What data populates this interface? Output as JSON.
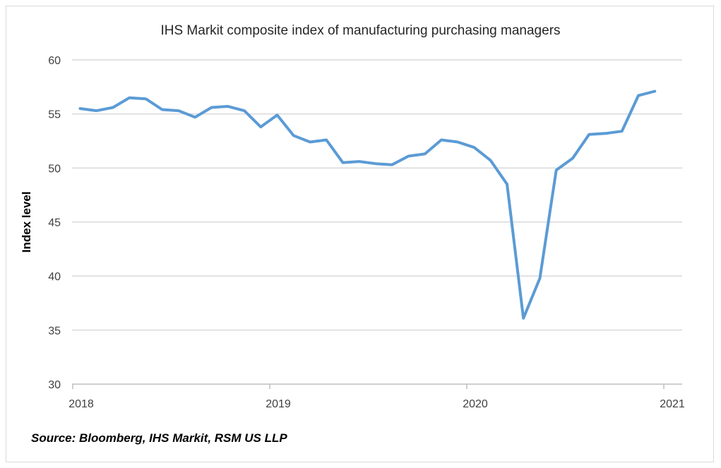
{
  "chart_data": {
    "type": "line",
    "title": "IHS Markit composite index of manufacturing purchasing managers",
    "xlabel": "",
    "ylabel": "Index level",
    "ylim": [
      30,
      60
    ],
    "yticks": [
      30,
      35,
      40,
      45,
      50,
      55,
      60
    ],
    "xticks": [
      "2018",
      "2019",
      "2020",
      "2021"
    ],
    "grid": "horizontal",
    "line_color": "#5b9bd5",
    "x": [
      "2018-01",
      "2018-02",
      "2018-03",
      "2018-04",
      "2018-05",
      "2018-06",
      "2018-07",
      "2018-08",
      "2018-09",
      "2018-10",
      "2018-11",
      "2018-12",
      "2019-01",
      "2019-02",
      "2019-03",
      "2019-04",
      "2019-05",
      "2019-06",
      "2019-07",
      "2019-08",
      "2019-09",
      "2019-10",
      "2019-11",
      "2019-12",
      "2020-01",
      "2020-02",
      "2020-03",
      "2020-04",
      "2020-05",
      "2020-06",
      "2020-07",
      "2020-08",
      "2020-09",
      "2020-10",
      "2020-11",
      "2020-12"
    ],
    "series": [
      {
        "values": [
          55.5,
          55.3,
          55.6,
          56.5,
          56.4,
          55.4,
          55.3,
          54.7,
          55.6,
          55.7,
          55.3,
          53.8,
          54.9,
          53.0,
          52.4,
          52.6,
          50.5,
          50.6,
          50.4,
          50.3,
          51.1,
          51.3,
          52.6,
          52.4,
          51.9,
          50.7,
          48.5,
          36.1,
          39.8,
          49.8,
          50.9,
          53.1,
          53.2,
          53.4,
          56.7,
          57.1
        ]
      }
    ]
  },
  "source": "Source: Bloomberg, IHS Markit, RSM US LLP"
}
